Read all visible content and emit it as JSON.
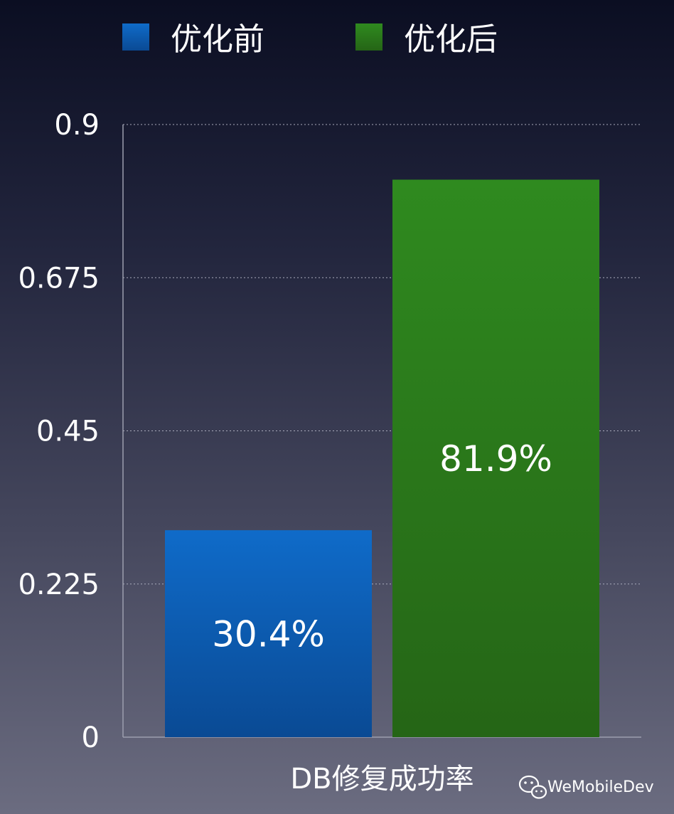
{
  "chart_data": {
    "type": "bar",
    "categories": [
      "DB修复成功率"
    ],
    "series": [
      {
        "name": "优化前",
        "values": [
          0.304
        ],
        "label": "30.4%",
        "color": "#0d5fb8"
      },
      {
        "name": "优化后",
        "values": [
          0.819
        ],
        "label": "81.9%",
        "color": "#2b7f1e"
      }
    ],
    "y_ticks": [
      0,
      0.225,
      0.45,
      0.675,
      0.9
    ],
    "y_tick_labels": [
      "0",
      "0.225",
      "0.45",
      "0.675",
      "0.9"
    ],
    "ylim": [
      0,
      0.9
    ],
    "grid": true,
    "legend_position": "top"
  },
  "watermark": {
    "text": "WeMobileDev",
    "icon": "wechat-icon"
  }
}
